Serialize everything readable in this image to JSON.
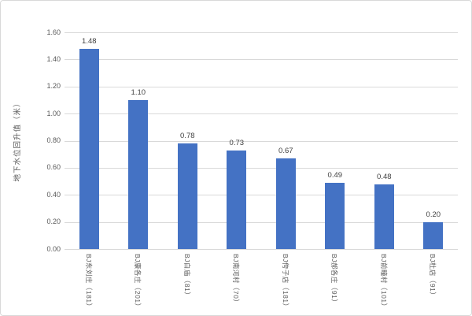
{
  "chart_data": {
    "type": "bar",
    "title": "",
    "xlabel": "",
    "ylabel": "地下水位回升值（米）",
    "categories": [
      "BJ东刘庄（181）",
      "BJ康各庄（201）",
      "BJ白庙（81）",
      "BJ南河村（70）",
      "BJ侉子店（181）",
      "BJ郝各庄（91）",
      "BJ前疃村（101）",
      "BJ杜店（91）"
    ],
    "values": [
      1.48,
      1.1,
      0.78,
      0.73,
      0.67,
      0.49,
      0.48,
      0.2
    ],
    "value_labels": [
      "1.48",
      "1.10",
      "0.78",
      "0.73",
      "0.67",
      "0.49",
      "0.48",
      "0.20"
    ],
    "ylim": [
      0,
      1.6
    ],
    "yticks": [
      "0.00",
      "0.20",
      "0.40",
      "0.60",
      "0.80",
      "1.00",
      "1.20",
      "1.40",
      "1.60"
    ],
    "grid": true,
    "legend": "none",
    "bar_color": "#4472C4",
    "gridline_color": "#D9D9D9",
    "axis_text_color": "#595959",
    "data_label_color": "#404040"
  }
}
